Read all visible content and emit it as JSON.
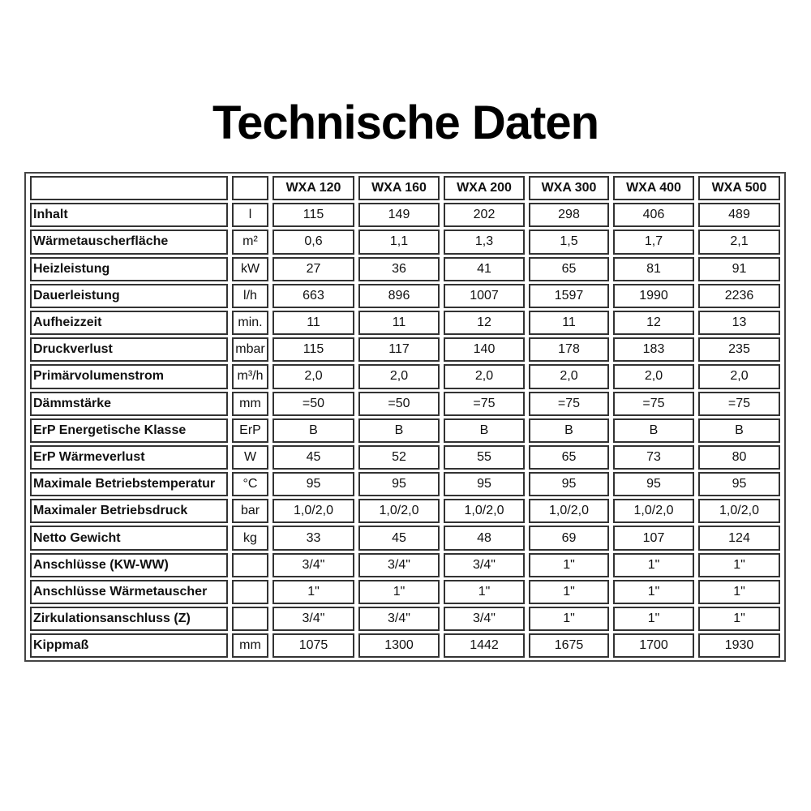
{
  "title": "Technische Daten",
  "table": {
    "headers": [
      "",
      "",
      "WXA 120",
      "WXA 160",
      "WXA 200",
      "WXA 300",
      "WXA 400",
      "WXA 500"
    ],
    "rows": [
      {
        "label": "Inhalt",
        "unit": "l",
        "values": [
          "115",
          "149",
          "202",
          "298",
          "406",
          "489"
        ]
      },
      {
        "label": "Wärmetauscherfläche",
        "unit": "m²",
        "values": [
          "0,6",
          "1,1",
          "1,3",
          "1,5",
          "1,7",
          "2,1"
        ]
      },
      {
        "label": "Heizleistung",
        "unit": "kW",
        "values": [
          "27",
          "36",
          "41",
          "65",
          "81",
          "91"
        ]
      },
      {
        "label": "Dauerleistung",
        "unit": "l/h",
        "values": [
          "663",
          "896",
          "1007",
          "1597",
          "1990",
          "2236"
        ]
      },
      {
        "label": "Aufheizzeit",
        "unit": "min.",
        "values": [
          "11",
          "11",
          "12",
          "11",
          "12",
          "13"
        ]
      },
      {
        "label": "Druckverlust",
        "unit": "mbar",
        "values": [
          "115",
          "117",
          "140",
          "178",
          "183",
          "235"
        ]
      },
      {
        "label": "Primärvolumenstrom",
        "unit": "m³/h",
        "values": [
          "2,0",
          "2,0",
          "2,0",
          "2,0",
          "2,0",
          "2,0"
        ]
      },
      {
        "label": "Dämmstärke",
        "unit": "mm",
        "values": [
          "=50",
          "=50",
          "=75",
          "=75",
          "=75",
          "=75"
        ]
      },
      {
        "label": "ErP Energetische Klasse",
        "unit": "ErP",
        "values": [
          "B",
          "B",
          "B",
          "B",
          "B",
          "B"
        ]
      },
      {
        "label": "ErP Wärmeverlust",
        "unit": "W",
        "values": [
          "45",
          "52",
          "55",
          "65",
          "73",
          "80"
        ]
      },
      {
        "label": "Maximale Betriebstemperatur",
        "unit": "°C",
        "values": [
          "95",
          "95",
          "95",
          "95",
          "95",
          "95"
        ]
      },
      {
        "label": "Maximaler Betriebsdruck",
        "unit": "bar",
        "values": [
          "1,0/2,0",
          "1,0/2,0",
          "1,0/2,0",
          "1,0/2,0",
          "1,0/2,0",
          "1,0/2,0"
        ]
      },
      {
        "label": "Netto Gewicht",
        "unit": "kg",
        "values": [
          "33",
          "45",
          "48",
          "69",
          "107",
          "124"
        ]
      },
      {
        "label": "Anschlüsse (KW-WW)",
        "unit": "",
        "values": [
          "3/4\"",
          "3/4\"",
          "3/4\"",
          "1\"",
          "1\"",
          "1\""
        ]
      },
      {
        "label": "Anschlüsse Wärmetauscher",
        "unit": "",
        "values": [
          "1\"",
          "1\"",
          "1\"",
          "1\"",
          "1\"",
          "1\""
        ]
      },
      {
        "label": "Zirkulationsanschluss (Z)",
        "unit": "",
        "values": [
          "3/4\"",
          "3/4\"",
          "3/4\"",
          "1\"",
          "1\"",
          "1\""
        ]
      },
      {
        "label": "Kippmaß",
        "unit": "mm",
        "values": [
          "1075",
          "1300",
          "1442",
          "1675",
          "1700",
          "1930"
        ]
      }
    ]
  }
}
